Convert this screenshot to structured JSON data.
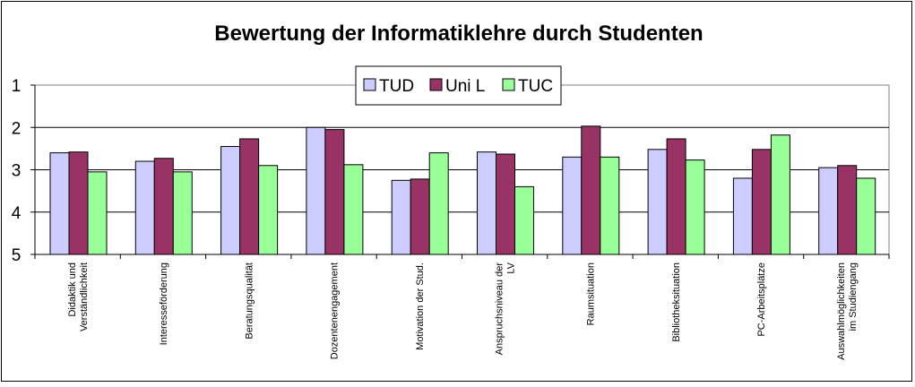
{
  "chart_data": {
    "type": "bar",
    "title": "Bewertung der Informatiklehre durch Studenten",
    "xlabel": "",
    "ylabel": "",
    "ylim": [
      1,
      5
    ],
    "y_inverted": true,
    "yticks": [
      "1",
      "2",
      "3",
      "4",
      "5"
    ],
    "grid": true,
    "legend_position": "top-center",
    "categories": [
      [
        "Didaktik und",
        "Verständlichkeit"
      ],
      [
        "Interesseförderung"
      ],
      [
        "Beratungsqualität"
      ],
      [
        "Dozentenengagement"
      ],
      [
        "Motivation der Stud."
      ],
      [
        "Anspruchsniveau der",
        "LV"
      ],
      [
        "Raumsituation"
      ],
      [
        "Bibliotheksituation"
      ],
      [
        "PC-Arbeitsplätze"
      ],
      [
        "Auswahlmöglichkeiten",
        "im Studiengang"
      ]
    ],
    "series": [
      {
        "name": "TUD",
        "color": "#ccccff",
        "values": [
          2.6,
          2.8,
          2.45,
          2.0,
          3.25,
          2.58,
          2.7,
          2.52,
          3.2,
          2.95
        ]
      },
      {
        "name": "Uni L",
        "color": "#993366",
        "values": [
          2.58,
          2.73,
          2.27,
          2.05,
          3.22,
          2.63,
          1.97,
          2.27,
          2.52,
          2.9
        ]
      },
      {
        "name": "TUC",
        "color": "#99ff99",
        "values": [
          3.05,
          3.05,
          2.9,
          2.88,
          2.6,
          3.4,
          2.7,
          2.77,
          2.18,
          3.2
        ]
      }
    ]
  }
}
